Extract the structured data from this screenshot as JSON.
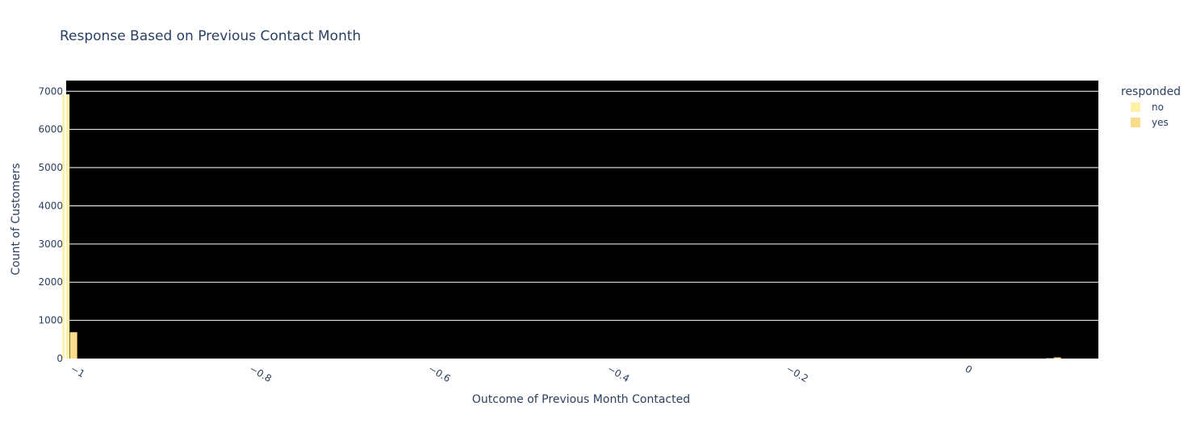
{
  "chart_data": {
    "type": "bar",
    "title": "Response Based on Previous Contact Month",
    "xlabel": "Outcome of Previous Month Contacted",
    "ylabel": "Count of Customers",
    "xlim": [
      -1.006,
      0.1499
    ],
    "ylim": [
      0,
      7280
    ],
    "x_ticks": [
      "−1",
      "−0.8",
      "−0.6",
      "−0.4",
      "−0.2",
      "0"
    ],
    "x_tick_values": [
      -1,
      -0.8,
      -0.6,
      -0.4,
      -0.2,
      0
    ],
    "y_ticks": [
      "0",
      "1000",
      "2000",
      "3000",
      "4000",
      "5000",
      "6000",
      "7000"
    ],
    "y_tick_values": [
      0,
      1000,
      2000,
      3000,
      4000,
      5000,
      6000,
      7000
    ],
    "grid": true,
    "plot_background": "#000000",
    "legend": {
      "title": "responded",
      "placement": "top-right"
    },
    "series": [
      {
        "name": "no",
        "color": "#fff1a8",
        "x": [
          -1,
          0.1
        ],
        "values": [
          6920,
          8
        ]
      },
      {
        "name": "yes",
        "color": "#fbdc8a",
        "x": [
          -1,
          0.1
        ],
        "values": [
          690,
          30
        ]
      }
    ]
  }
}
